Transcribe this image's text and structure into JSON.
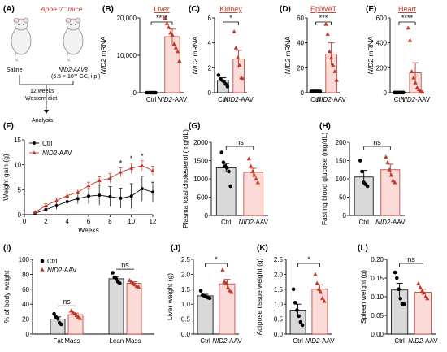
{
  "colors": {
    "ctrl": "#000000",
    "nid2": "#c0392b",
    "ctrl_bar": "#d9d9d9",
    "nid2_bar": "#fadbd8"
  },
  "panelA": {
    "label": "(A)",
    "mice_title": "Apoe⁻/⁻ mice",
    "saline": "Saline",
    "aav_name": "NID2-AAV8",
    "aav_dose": "(6.5 × 10¹¹ GC, i.p.)",
    "step1": "12 weeks",
    "step2": "Western diet",
    "step3": "Analysis"
  },
  "chart_data": [
    {
      "id": "B",
      "type": "bar",
      "label": "(B)",
      "title": "Liver",
      "ylabel": "NID2 mRNA",
      "ylim": [
        0,
        20000
      ],
      "yticks": [
        "0",
        "10,000",
        "20,000"
      ],
      "categories": [
        "Ctrl",
        "NID2-AAV"
      ],
      "means": [
        1,
        15000
      ],
      "sem": [
        0,
        2000
      ],
      "points": [
        [
          1,
          1,
          1,
          1,
          1,
          1
        ],
        [
          20500,
          18500,
          17500,
          16000,
          15500,
          13000,
          12000,
          11000,
          8500
        ]
      ],
      "sig": "****"
    },
    {
      "id": "C",
      "type": "bar",
      "label": "(C)",
      "title": "Kidney",
      "ylabel": "NID2 mRNA",
      "ylim": [
        0,
        6
      ],
      "yticks": [
        "0",
        "2",
        "4",
        "6"
      ],
      "categories": [
        "Ctrl",
        "NID2-AAV"
      ],
      "means": [
        1.0,
        2.7
      ],
      "sem": [
        0.2,
        0.7
      ],
      "points": [
        [
          1.4,
          1.1,
          1.0,
          0.9,
          0.7,
          0.5
        ],
        [
          4.9,
          3.6,
          2.8,
          2.2,
          1.2,
          1.1
        ]
      ],
      "sig": "*"
    },
    {
      "id": "D",
      "type": "bar",
      "label": "(D)",
      "title": "EpiWAT",
      "ylabel": "NID2 mRNA",
      "ylim": [
        0,
        60
      ],
      "yticks": [
        "0",
        "20",
        "40",
        "60"
      ],
      "categories": [
        "Ctrl",
        "NID2-AAV"
      ],
      "means": [
        1,
        31
      ],
      "sem": [
        0,
        9
      ],
      "points": [
        [
          1,
          1,
          1,
          1,
          1,
          1
        ],
        [
          55,
          47,
          33,
          28,
          22,
          17,
          10
        ]
      ],
      "sig": "***"
    },
    {
      "id": "E",
      "type": "bar",
      "label": "(E)",
      "title": "Heart",
      "ylabel": "NID2 mRNA",
      "ylim": [
        0,
        600
      ],
      "yticks": [
        "0",
        "200",
        "400",
        "600"
      ],
      "categories": [
        "Ctrl",
        "NID2-AAV"
      ],
      "means": [
        1,
        160
      ],
      "sem": [
        0,
        80
      ],
      "points": [
        [
          1,
          1,
          1,
          1,
          1,
          1
        ],
        [
          520,
          420,
          170,
          120,
          80,
          40,
          25,
          15,
          5
        ]
      ],
      "sig": "****"
    },
    {
      "id": "F",
      "type": "line",
      "label": "(F)",
      "xlabel": "Weeks",
      "ylabel": "Weight gain (g)",
      "xlim": [
        0,
        12
      ],
      "ylim": [
        0,
        15
      ],
      "xticks": [
        "0",
        "2",
        "4",
        "6",
        "8",
        "10",
        "12"
      ],
      "yticks": [
        "0",
        "5",
        "10",
        "15"
      ],
      "x": [
        1,
        2,
        3,
        4,
        5,
        6,
        7,
        8,
        9,
        10,
        11,
        12
      ],
      "series": [
        {
          "name": "Ctrl",
          "values": [
            0.3,
            1.0,
            1.8,
            2.6,
            3.2,
            3.7,
            3.9,
            3.6,
            3.3,
            3.7,
            5.2,
            4.5
          ],
          "err": [
            0.2,
            0.5,
            0.7,
            0.9,
            1.0,
            1.5,
            2.0,
            2.0,
            2.0,
            2.5,
            2.5,
            2.0
          ]
        },
        {
          "name": "NID2-AAV",
          "values": [
            0.5,
            1.8,
            2.8,
            3.8,
            4.5,
            5.8,
            6.8,
            7.3,
            8.5,
            9.3,
            9.8,
            8.8
          ],
          "err": [
            0.2,
            0.4,
            0.5,
            0.5,
            0.6,
            0.7,
            0.8,
            0.9,
            0.9,
            1.0,
            1.0,
            0.9
          ]
        }
      ],
      "sig_marks": [
        {
          "x": 9,
          "text": "*"
        },
        {
          "x": 10,
          "text": "*"
        },
        {
          "x": 11,
          "text": "*"
        }
      ]
    },
    {
      "id": "G",
      "type": "bar",
      "label": "(G)",
      "ylabel": "Plasma total cholesterol (mg/dL)",
      "ylim": [
        0,
        2000
      ],
      "yticks": [
        "0",
        "500",
        "1000",
        "1500",
        "2000"
      ],
      "categories": [
        "Ctrl",
        "NID2-AAV"
      ],
      "means": [
        1300,
        1180
      ],
      "sem": [
        120,
        110
      ],
      "points": [
        [
          1720,
          1450,
          1350,
          1300,
          1200,
          800
        ],
        [
          1550,
          1350,
          1200,
          1100,
          1000,
          900
        ]
      ],
      "sig": "ns"
    },
    {
      "id": "H",
      "type": "bar",
      "label": "(H)",
      "ylabel": "Fasting blood glucose (mg/dL)",
      "ylim": [
        0,
        200
      ],
      "yticks": [
        "0",
        "50",
        "100",
        "150",
        "200"
      ],
      "categories": [
        "Ctrl",
        "NID2-AAV"
      ],
      "means": [
        105,
        125
      ],
      "sem": [
        18,
        15
      ],
      "points": [
        [
          150,
          120,
          90,
          85,
          80
        ],
        [
          160,
          145,
          125,
          110,
          95,
          90
        ]
      ],
      "sig": "ns"
    },
    {
      "id": "I",
      "type": "bar",
      "label": "(I)",
      "ylabel": "% of body weight",
      "ylim": [
        0,
        100
      ],
      "yticks": [
        "0",
        "20",
        "40",
        "60",
        "80",
        "100"
      ],
      "categories": [
        "Fat Mass",
        "Lean Mass"
      ],
      "series": [
        {
          "name": "Ctrl",
          "means": [
            20,
            74
          ],
          "sem": [
            3,
            3
          ],
          "points": [
            [
              27,
              23,
              21,
              15,
              13
            ],
            [
              82,
              76,
              74,
              70,
              68
            ]
          ]
        },
        {
          "name": "NID2-AAV",
          "means": [
            26,
            68
          ],
          "sem": [
            2,
            2
          ],
          "points": [
            [
              31,
              29,
              27,
              25,
              23,
              21
            ],
            [
              72,
              70,
              68,
              66,
              64,
              63
            ]
          ]
        }
      ],
      "sig": [
        "ns",
        "ns"
      ]
    },
    {
      "id": "J",
      "type": "bar",
      "label": "(J)",
      "ylabel": "Liver weight (g)",
      "ylim": [
        0,
        2.5
      ],
      "yticks": [
        "0.0",
        "0.5",
        "1.0",
        "1.5",
        "2.0",
        "2.5"
      ],
      "categories": [
        "Ctrl",
        "NID2-AAV"
      ],
      "means": [
        1.28,
        1.68
      ],
      "sem": [
        0.05,
        0.15
      ],
      "points": [
        [
          1.45,
          1.3,
          1.28,
          1.25,
          1.22,
          1.2
        ],
        [
          2.15,
          1.75,
          1.7,
          1.55,
          1.45,
          1.4
        ]
      ],
      "sig": "*"
    },
    {
      "id": "K",
      "type": "bar",
      "label": "(K)",
      "ylabel": "Adipose tissue weight (g)",
      "ylim": [
        0,
        2.5
      ],
      "yticks": [
        "0.0",
        "0.5",
        "1.0",
        "1.5",
        "2.0",
        "2.5"
      ],
      "categories": [
        "Ctrl",
        "NID2-AAV"
      ],
      "means": [
        0.8,
        1.5
      ],
      "sem": [
        0.2,
        0.15
      ],
      "points": [
        [
          1.5,
          1.05,
          0.8,
          0.6,
          0.4,
          0.3
        ],
        [
          2.0,
          1.7,
          1.5,
          1.4,
          1.2,
          1.1
        ]
      ],
      "sig": "*"
    },
    {
      "id": "L",
      "type": "bar",
      "label": "(L)",
      "ylabel": "Spleen weight (g)",
      "ylim": [
        0,
        0.2
      ],
      "yticks": [
        "0.00",
        "0.05",
        "0.10",
        "0.15",
        "0.20"
      ],
      "categories": [
        "Ctrl",
        "NID2-AAV"
      ],
      "means": [
        0.118,
        0.112
      ],
      "sem": [
        0.018,
        0.008
      ],
      "points": [
        [
          0.165,
          0.15,
          0.12,
          0.095,
          0.08,
          0.08
        ],
        [
          0.135,
          0.125,
          0.115,
          0.11,
          0.1,
          0.095
        ]
      ],
      "sig": "ns"
    }
  ]
}
